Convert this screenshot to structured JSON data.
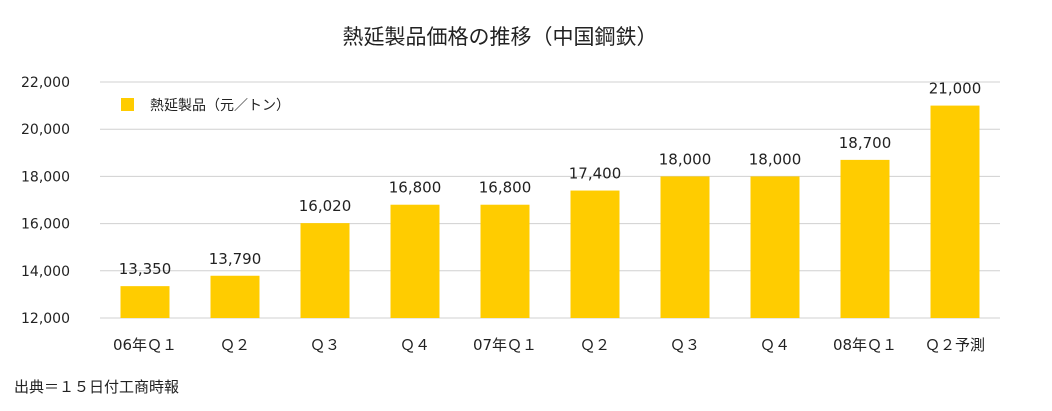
{
  "chart_data": {
    "type": "bar",
    "title": "熱延製品価格の推移（中国鋼鉄）",
    "categories": [
      "06年Ｑ１",
      "Ｑ２",
      "Ｑ３",
      "Ｑ４",
      "07年Ｑ１",
      "Ｑ２",
      "Ｑ３",
      "Ｑ４",
      "08年Ｑ１",
      "Ｑ２予測"
    ],
    "series": [
      {
        "name": "熱延製品（元／トン）",
        "values": [
          13350,
          13790,
          16020,
          16800,
          16800,
          17400,
          18000,
          18000,
          18700,
          21000
        ],
        "labels": [
          "13,350",
          "13,790",
          "16,020",
          "16,800",
          "16,800",
          "17,400",
          "18,000",
          "18,000",
          "18,700",
          "21,000"
        ],
        "color": "#FFCC00"
      }
    ],
    "ylim": [
      12000,
      22000
    ],
    "yticks": [
      12000,
      14000,
      16000,
      18000,
      20000,
      22000
    ],
    "ytick_labels": [
      "12,000",
      "14,000",
      "16,000",
      "18,000",
      "20,000",
      "22,000"
    ],
    "grid": true,
    "legend_position": "top-left",
    "xlabel": "",
    "ylabel": ""
  },
  "source_note": "出典＝１５日付工商時報"
}
